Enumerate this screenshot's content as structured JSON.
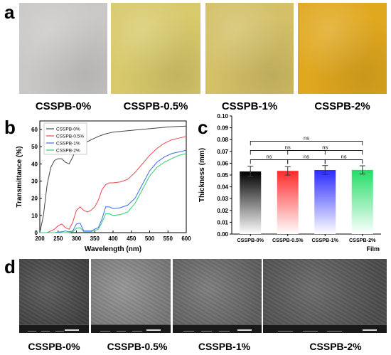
{
  "panels": {
    "a": "a",
    "b": "b",
    "c": "c",
    "d": "d"
  },
  "photos": [
    {
      "label": "CSSPB-0%",
      "color": "#c9c8c6"
    },
    {
      "label": "CSSPB-0.5%",
      "color": "#d8c96b"
    },
    {
      "label": "CSSPB-1%",
      "color": "#d3c067"
    },
    {
      "label": "CSSPB-2%",
      "color": "#e0a81e"
    }
  ],
  "sem_images": [
    {
      "label": "CSSPB-0%",
      "tone": "#4a4a4a"
    },
    {
      "label": "CSSPB-0.5%",
      "tone": "#8a8a8a"
    },
    {
      "label": "CSSPB-1%",
      "tone": "#6e6e6e"
    },
    {
      "label": "CSSPB-2%",
      "tone": "#5a5a5a"
    }
  ],
  "chart_data": [
    {
      "type": "line",
      "xlabel": "Wavelength (nm)",
      "ylabel": "Transmittance (%)",
      "xlim": [
        200,
        600
      ],
      "ylim": [
        0,
        65
      ],
      "xticks": [
        200,
        250,
        300,
        350,
        400,
        450,
        500,
        550,
        600
      ],
      "yticks": [
        0,
        10,
        20,
        30,
        40,
        50,
        60
      ],
      "legend_position": "top-left",
      "series": [
        {
          "name": "CSSPB-0%",
          "color": "#444444",
          "x": [
            200,
            210,
            220,
            230,
            240,
            250,
            260,
            270,
            280,
            290,
            300,
            320,
            340,
            360,
            380,
            400,
            450,
            500,
            550,
            600
          ],
          "y": [
            0,
            10,
            28,
            38,
            42,
            43,
            43,
            41,
            40,
            44,
            49,
            52,
            54,
            56,
            57.5,
            58.5,
            59.5,
            60.5,
            61.5,
            62
          ]
        },
        {
          "name": "CSSPB-0.5%",
          "color": "#e8474a",
          "x": [
            200,
            220,
            240,
            250,
            260,
            270,
            280,
            290,
            300,
            310,
            320,
            330,
            340,
            350,
            360,
            370,
            380,
            390,
            400,
            420,
            440,
            460,
            480,
            500,
            520,
            540,
            560,
            580,
            600
          ],
          "y": [
            0,
            0,
            2,
            4,
            5,
            3,
            2,
            6,
            13,
            15,
            13,
            12,
            13,
            15,
            19,
            25,
            28,
            29,
            29,
            29.5,
            31,
            35,
            40,
            45,
            49,
            52,
            54,
            55,
            56
          ]
        },
        {
          "name": "CSSPB-1%",
          "color": "#3f6be8",
          "x": [
            200,
            240,
            260,
            270,
            280,
            290,
            300,
            310,
            320,
            340,
            360,
            370,
            380,
            390,
            400,
            420,
            440,
            460,
            480,
            500,
            520,
            540,
            560,
            580,
            600
          ],
          "y": [
            0,
            0,
            0.5,
            1,
            0.5,
            1,
            5,
            5.5,
            1,
            1,
            3,
            8,
            15,
            15,
            14,
            14.5,
            16,
            20,
            28,
            36,
            41,
            44,
            46,
            47,
            48
          ]
        },
        {
          "name": "CSSPB-2%",
          "color": "#2ecc71",
          "x": [
            200,
            260,
            280,
            290,
            300,
            310,
            320,
            340,
            360,
            370,
            380,
            390,
            400,
            420,
            440,
            460,
            480,
            500,
            520,
            540,
            560,
            580,
            600
          ],
          "y": [
            0,
            0,
            0,
            0.5,
            2.5,
            3,
            0.5,
            0.5,
            2,
            6,
            11,
            11,
            10,
            10.5,
            12,
            17,
            25,
            33,
            38,
            41,
            43,
            45,
            46
          ]
        }
      ]
    },
    {
      "type": "bar",
      "xlabel": "Film",
      "ylabel": "Thickness (mm)",
      "ylim": [
        0,
        0.1
      ],
      "yticks": [
        "0.00",
        "0.01",
        "0.02",
        "0.03",
        "0.04",
        "0.05",
        "0.06",
        "0.07",
        "0.08",
        "0.09",
        "0.10"
      ],
      "categories": [
        "CSSPB-0%",
        "CSSPB-0.5% ",
        "CSSPB-1%",
        "CSSPB-2%"
      ],
      "values": [
        0.053,
        0.0535,
        0.0542,
        0.0543
      ],
      "errors": [
        0.0045,
        0.0035,
        0.0038,
        0.0035
      ],
      "colors": [
        "#000000",
        "#ff2a2a",
        "#2a2aff",
        "#22dd66"
      ],
      "significance": [
        {
          "from": 0,
          "to": 1,
          "label": "ns"
        },
        {
          "from": 1,
          "to": 2,
          "label": "ns"
        },
        {
          "from": 2,
          "to": 3,
          "label": "ns"
        },
        {
          "from": 0,
          "to": 2,
          "label": "ns"
        },
        {
          "from": 1,
          "to": 3,
          "label": "ns"
        },
        {
          "from": 0,
          "to": 3,
          "label": "ns"
        }
      ]
    }
  ]
}
